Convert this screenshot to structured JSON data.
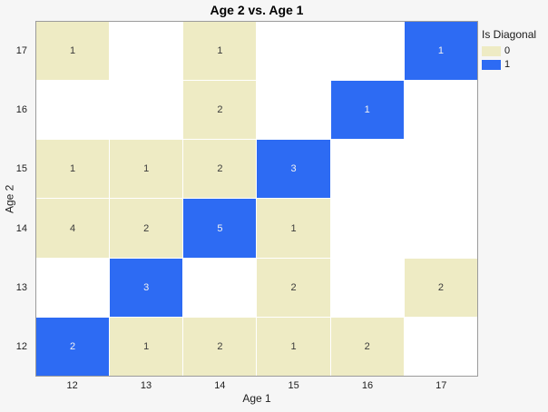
{
  "title": "Age 2 vs. Age 1",
  "colors": {
    "background": "#f6f6f6",
    "plot_background": "#ffffff",
    "plot_border": "#9b9b9b",
    "off_diagonal": "#eeebc4",
    "diagonal": "#2d6bf3",
    "off_diagonal_text": "#3a3a3a",
    "diagonal_text": "#f2f2f2"
  },
  "legend": {
    "title": "Is Diagonal",
    "items": [
      {
        "label": "0",
        "level": "level0",
        "color": "#eeebc4"
      },
      {
        "label": "1",
        "level": "level1",
        "color": "#2d6bf3"
      }
    ]
  },
  "chart_data": {
    "type": "heatmap",
    "title": "Age 2 vs. Age 1",
    "xlabel": "Age 1",
    "ylabel": "Age 2",
    "x_ticks": [
      12,
      13,
      14,
      15,
      16,
      17
    ],
    "y_ticks_top_to_bottom": [
      17,
      16,
      15,
      14,
      13,
      12
    ],
    "legend_title": "Is Diagonal",
    "legend_levels": [
      "0",
      "1"
    ],
    "grid": false,
    "cells": [
      {
        "age1": 12,
        "age2": 17,
        "count": 1,
        "is_diagonal": 0
      },
      {
        "age1": 14,
        "age2": 17,
        "count": 1,
        "is_diagonal": 0
      },
      {
        "age1": 17,
        "age2": 17,
        "count": 1,
        "is_diagonal": 1
      },
      {
        "age1": 14,
        "age2": 16,
        "count": 2,
        "is_diagonal": 0
      },
      {
        "age1": 16,
        "age2": 16,
        "count": 1,
        "is_diagonal": 1
      },
      {
        "age1": 12,
        "age2": 15,
        "count": 1,
        "is_diagonal": 0
      },
      {
        "age1": 13,
        "age2": 15,
        "count": 1,
        "is_diagonal": 0
      },
      {
        "age1": 14,
        "age2": 15,
        "count": 2,
        "is_diagonal": 0
      },
      {
        "age1": 15,
        "age2": 15,
        "count": 3,
        "is_diagonal": 1
      },
      {
        "age1": 12,
        "age2": 14,
        "count": 4,
        "is_diagonal": 0
      },
      {
        "age1": 13,
        "age2": 14,
        "count": 2,
        "is_diagonal": 0
      },
      {
        "age1": 14,
        "age2": 14,
        "count": 5,
        "is_diagonal": 1
      },
      {
        "age1": 15,
        "age2": 14,
        "count": 1,
        "is_diagonal": 0
      },
      {
        "age1": 13,
        "age2": 13,
        "count": 3,
        "is_diagonal": 1
      },
      {
        "age1": 15,
        "age2": 13,
        "count": 2,
        "is_diagonal": 0
      },
      {
        "age1": 17,
        "age2": 13,
        "count": 2,
        "is_diagonal": 0
      },
      {
        "age1": 12,
        "age2": 12,
        "count": 2,
        "is_diagonal": 1
      },
      {
        "age1": 13,
        "age2": 12,
        "count": 1,
        "is_diagonal": 0
      },
      {
        "age1": 14,
        "age2": 12,
        "count": 2,
        "is_diagonal": 0
      },
      {
        "age1": 15,
        "age2": 12,
        "count": 1,
        "is_diagonal": 0
      },
      {
        "age1": 16,
        "age2": 12,
        "count": 2,
        "is_diagonal": 0
      }
    ]
  }
}
